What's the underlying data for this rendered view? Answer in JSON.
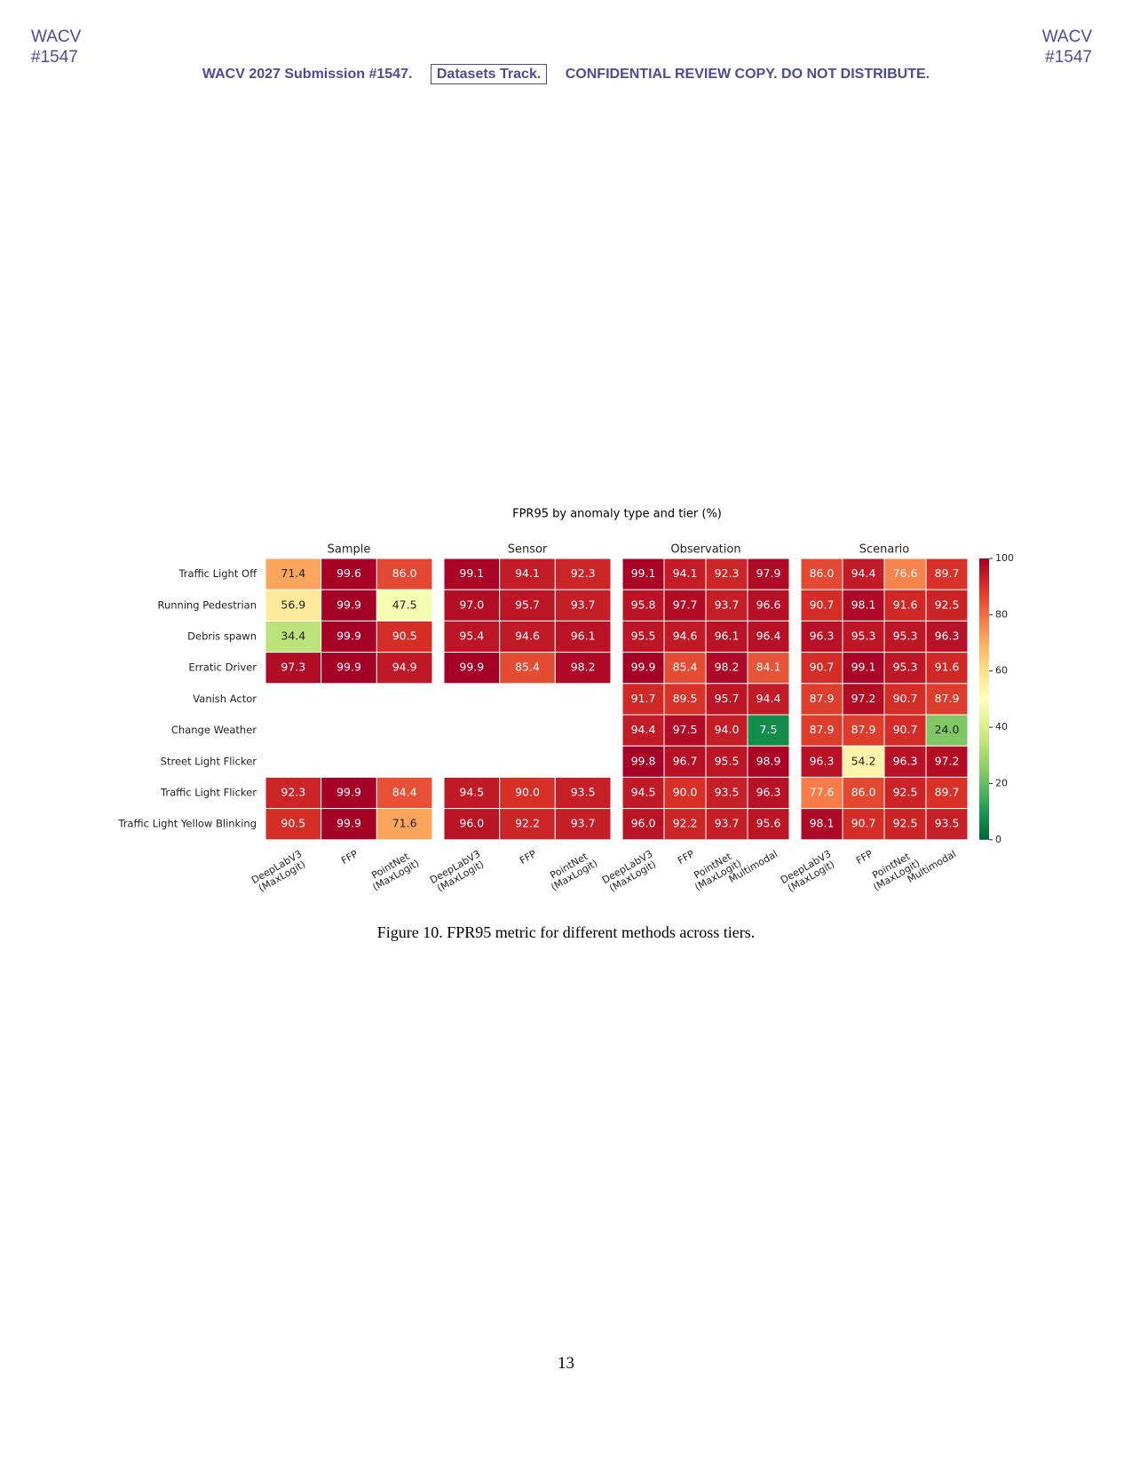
{
  "header": {
    "left_venue": "WACV",
    "left_id": "#1547",
    "right_venue": "WACV",
    "right_id": "#1547",
    "submission": "WACV 2027 Submission #1547.",
    "track": "Datasets Track.",
    "notice": "CONFIDENTIAL REVIEW COPY. DO NOT DISTRIBUTE."
  },
  "chart_data": {
    "type": "heatmap",
    "title": "FPR95 by anomaly type and tier (%)",
    "rows": [
      "Traffic Light Off",
      "Running Pedestrian",
      "Debris spawn",
      "Erratic Driver",
      "Vanish Actor",
      "Change Weather",
      "Street Light Flicker",
      "Traffic Light Flicker",
      "Traffic Light Yellow Blinking"
    ],
    "colormap": "RdYlGn_r",
    "clim": [
      0,
      100
    ],
    "cticks": [
      0,
      20,
      40,
      60,
      80,
      100
    ],
    "panels": [
      {
        "title": "Sample",
        "categories": [
          "DeepLabV3\n(MaxLogit)",
          "FFP",
          "PointNet\n(MaxLogit)"
        ],
        "values": [
          [
            71.4,
            99.6,
            86.0
          ],
          [
            56.9,
            99.9,
            47.5
          ],
          [
            34.4,
            99.9,
            90.5
          ],
          [
            97.3,
            99.9,
            94.9
          ],
          [
            null,
            null,
            null
          ],
          [
            null,
            null,
            null
          ],
          [
            null,
            null,
            null
          ],
          [
            92.3,
            99.9,
            84.4
          ],
          [
            90.5,
            99.9,
            71.6
          ]
        ],
        "value_labels": [
          [
            "71.4",
            "99.6",
            "86.0"
          ],
          [
            "56.9",
            "99.9",
            "47.5"
          ],
          [
            "34.4",
            "99.9",
            "90.5"
          ],
          [
            "97.3",
            "99.9",
            "94.9"
          ],
          [
            null,
            null,
            null
          ],
          [
            null,
            null,
            null
          ],
          [
            null,
            null,
            null
          ],
          [
            "92.3",
            "99.9",
            "84.4"
          ],
          [
            "90.5",
            "99.9",
            "71.6"
          ]
        ]
      },
      {
        "title": "Sensor",
        "categories": [
          "DeepLabV3\n(MaxLogit)",
          "FFP",
          "PointNet\n(MaxLogit)"
        ],
        "values": [
          [
            99.1,
            94.1,
            92.3
          ],
          [
            97.0,
            95.7,
            93.7
          ],
          [
            95.4,
            94.6,
            96.1
          ],
          [
            99.9,
            85.4,
            98.2
          ],
          [
            null,
            null,
            null
          ],
          [
            null,
            null,
            null
          ],
          [
            null,
            null,
            null
          ],
          [
            94.5,
            90.0,
            93.5
          ],
          [
            96.0,
            92.2,
            93.7
          ]
        ],
        "value_labels": [
          [
            "99.1",
            "94.1",
            "92.3"
          ],
          [
            "97.0",
            "95.7",
            "93.7"
          ],
          [
            "95.4",
            "94.6",
            "96.1"
          ],
          [
            "99.9",
            "85.4",
            "98.2"
          ],
          [
            null,
            null,
            null
          ],
          [
            null,
            null,
            null
          ],
          [
            null,
            null,
            null
          ],
          [
            "94.5",
            "90.0",
            "93.5"
          ],
          [
            "96.0",
            "92.2",
            "93.7"
          ]
        ]
      },
      {
        "title": "Observation",
        "categories": [
          "DeepLabV3\n(MaxLogit)",
          "FFP",
          "PointNet\n(MaxLogit)",
          "Multimodal"
        ],
        "values": [
          [
            99.1,
            94.1,
            92.3,
            97.9
          ],
          [
            95.8,
            97.7,
            93.7,
            96.6
          ],
          [
            95.5,
            94.6,
            96.1,
            96.4
          ],
          [
            99.9,
            85.4,
            98.2,
            84.1
          ],
          [
            91.7,
            89.5,
            95.7,
            94.4
          ],
          [
            94.4,
            97.5,
            94.0,
            7.5
          ],
          [
            99.8,
            96.7,
            95.5,
            98.9
          ],
          [
            94.5,
            90.0,
            93.5,
            96.3
          ],
          [
            96.0,
            92.2,
            93.7,
            95.6
          ]
        ],
        "value_labels": [
          [
            "99.1",
            "94.1",
            "92.3",
            "97.9"
          ],
          [
            "95.8",
            "97.7",
            "93.7",
            "96.6"
          ],
          [
            "95.5",
            "94.6",
            "96.1",
            "96.4"
          ],
          [
            "99.9",
            "85.4",
            "98.2",
            "84.1"
          ],
          [
            "91.7",
            "89.5",
            "95.7",
            "94.4"
          ],
          [
            "94.4",
            "97.5",
            "94.0",
            "7.5"
          ],
          [
            "99.8",
            "96.7",
            "95.5",
            "98.9"
          ],
          [
            "94.5",
            "90.0",
            "93.5",
            "96.3"
          ],
          [
            "96.0",
            "92.2",
            "93.7",
            "95.6"
          ]
        ]
      },
      {
        "title": "Scenario",
        "categories": [
          "DeepLabV3\n(MaxLogit)",
          "FFP",
          "PointNet\n(MaxLogit)",
          "Multimodal"
        ],
        "values": [
          [
            86.0,
            94.4,
            76.6,
            89.7
          ],
          [
            90.7,
            98.1,
            91.6,
            92.5
          ],
          [
            96.3,
            95.3,
            95.3,
            96.3
          ],
          [
            90.7,
            99.1,
            95.3,
            91.6
          ],
          [
            87.9,
            97.2,
            90.7,
            87.9
          ],
          [
            87.9,
            87.9,
            90.7,
            24.0
          ],
          [
            96.3,
            54.2,
            96.3,
            97.2
          ],
          [
            77.6,
            86.0,
            92.5,
            89.7
          ],
          [
            98.1,
            90.7,
            92.5,
            93.5
          ]
        ],
        "value_labels": [
          [
            "86.0",
            "94.4",
            "76.6",
            "89.7"
          ],
          [
            "90.7",
            "98.1",
            "91.6",
            "92.5"
          ],
          [
            "96.3",
            "95.3",
            "95.3",
            "96.3"
          ],
          [
            "90.7",
            "99.1",
            "95.3",
            "91.6"
          ],
          [
            "87.9",
            "97.2",
            "90.7",
            "87.9"
          ],
          [
            "87.9",
            "87.9",
            "90.7",
            "24.0"
          ],
          [
            "96.3",
            "54.2",
            "96.3",
            "97.2"
          ],
          [
            "77.6",
            "86.0",
            "92.5",
            "89.7"
          ],
          [
            "98.1",
            "90.7",
            "92.5",
            "93.5"
          ]
        ]
      }
    ]
  },
  "caption": "Figure 10. FPR95 metric for different methods across tiers.",
  "page_number": "13"
}
